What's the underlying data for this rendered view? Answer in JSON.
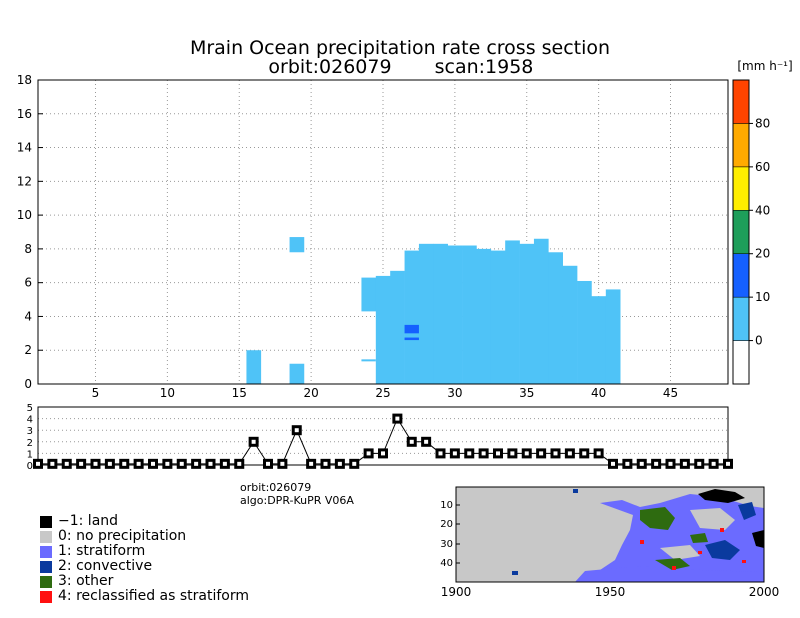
{
  "chart_data": [
    {
      "type": "heatmap",
      "name": "cross-section",
      "title": "Mrain Ocean precipitation rate cross section",
      "subtitle_orbit": "orbit:026079",
      "subtitle_scan": "scan:1958",
      "xlim": [
        1,
        49
      ],
      "ylim": [
        0,
        18
      ],
      "xticks": [
        "5",
        "10",
        "15",
        "20",
        "25",
        "30",
        "35",
        "40",
        "45"
      ],
      "yticks": [
        "0",
        "2",
        "4",
        "6",
        "8",
        "10",
        "12",
        "14",
        "16",
        "18"
      ],
      "grid": true,
      "columns": [
        {
          "x": 16,
          "bottom": 0,
          "top": 2.0
        },
        {
          "x": 19,
          "bottom": 0,
          "top": 1.2
        },
        {
          "x": 19,
          "bottom": 7.8,
          "top": 8.7
        },
        {
          "x": 24,
          "bottom": 4.3,
          "top": 6.3
        },
        {
          "x": 25,
          "bottom": 0,
          "top": 6.4
        },
        {
          "x": 26,
          "bottom": 0,
          "top": 6.7
        },
        {
          "x": 27,
          "bottom": 0,
          "top": 7.9
        },
        {
          "x": 28,
          "bottom": 0,
          "top": 8.3
        },
        {
          "x": 29,
          "bottom": 0,
          "top": 8.3
        },
        {
          "x": 30,
          "bottom": 0,
          "top": 8.2
        },
        {
          "x": 31,
          "bottom": 0,
          "top": 8.2
        },
        {
          "x": 32,
          "bottom": 0,
          "top": 8.0
        },
        {
          "x": 33,
          "bottom": 0,
          "top": 7.9
        },
        {
          "x": 34,
          "bottom": 0,
          "top": 8.5
        },
        {
          "x": 35,
          "bottom": 0,
          "top": 8.3
        },
        {
          "x": 36,
          "bottom": 0,
          "top": 8.6
        },
        {
          "x": 37,
          "bottom": 0,
          "top": 7.8
        },
        {
          "x": 38,
          "bottom": 0,
          "top": 7.0
        },
        {
          "x": 39,
          "bottom": 0,
          "top": 6.1
        },
        {
          "x": 40,
          "bottom": 0,
          "top": 5.2
        },
        {
          "x": 41,
          "bottom": 0,
          "top": 5.6
        }
      ],
      "highlights": [
        {
          "x": 27,
          "bottom": 3.0,
          "top": 3.5,
          "color": "#1560ff"
        },
        {
          "x": 27,
          "bottom": 2.6,
          "top": 2.75,
          "color": "#1560ff"
        }
      ],
      "thin": [
        {
          "x": 24,
          "value": 1.4
        }
      ]
    },
    {
      "type": "line",
      "name": "precip-type",
      "x": [
        1,
        2,
        3,
        4,
        5,
        6,
        7,
        8,
        9,
        10,
        11,
        12,
        13,
        14,
        15,
        16,
        17,
        18,
        19,
        20,
        21,
        22,
        23,
        24,
        25,
        26,
        27,
        28,
        29,
        30,
        31,
        32,
        33,
        34,
        35,
        36,
        37,
        38,
        39,
        40,
        41,
        42,
        43,
        44,
        45,
        46,
        47,
        48,
        49
      ],
      "values": [
        0,
        0,
        0,
        0,
        0,
        0,
        0,
        0,
        0,
        0,
        0,
        0,
        0,
        0,
        0,
        2,
        0,
        0,
        3,
        0,
        0,
        0,
        0,
        1,
        1,
        4,
        2,
        2,
        1,
        1,
        1,
        1,
        1,
        1,
        1,
        1,
        1,
        1,
        1,
        1,
        0,
        0,
        0,
        0,
        0,
        0,
        0,
        0,
        0
      ],
      "ylim": [
        0,
        5
      ],
      "yticks": [
        "0",
        "1",
        "2",
        "3",
        "4",
        "5"
      ]
    },
    {
      "type": "heatmap",
      "name": "swath-map",
      "xticks": [
        "1900",
        "1950",
        "2000"
      ],
      "yticks": [
        "10",
        "20",
        "30",
        "40"
      ]
    }
  ],
  "colorbar": {
    "unit": "[mm h⁻¹]",
    "labels": [
      "0",
      "10",
      "20",
      "40",
      "60",
      "80"
    ],
    "colors": [
      "#ffffff",
      "#4fc3f7",
      "#1560ff",
      "#1e9e5a",
      "#ffee00",
      "#ffaa00",
      "#ff4400"
    ]
  },
  "meta": {
    "orbit": "orbit:026079",
    "algo": "algo:DPR-KuPR V06A"
  },
  "legend": [
    {
      "label": "−1: land",
      "color": "#000000"
    },
    {
      "label": "0: no precipitation",
      "color": "#c8c8c8"
    },
    {
      "label": "1: stratiform",
      "color": "#6b6bff"
    },
    {
      "label": "2: convective",
      "color": "#0a3a9e"
    },
    {
      "label": "3: other",
      "color": "#2e6b10"
    },
    {
      "label": "4: reclassified as stratiform",
      "color": "#ff1010"
    }
  ]
}
